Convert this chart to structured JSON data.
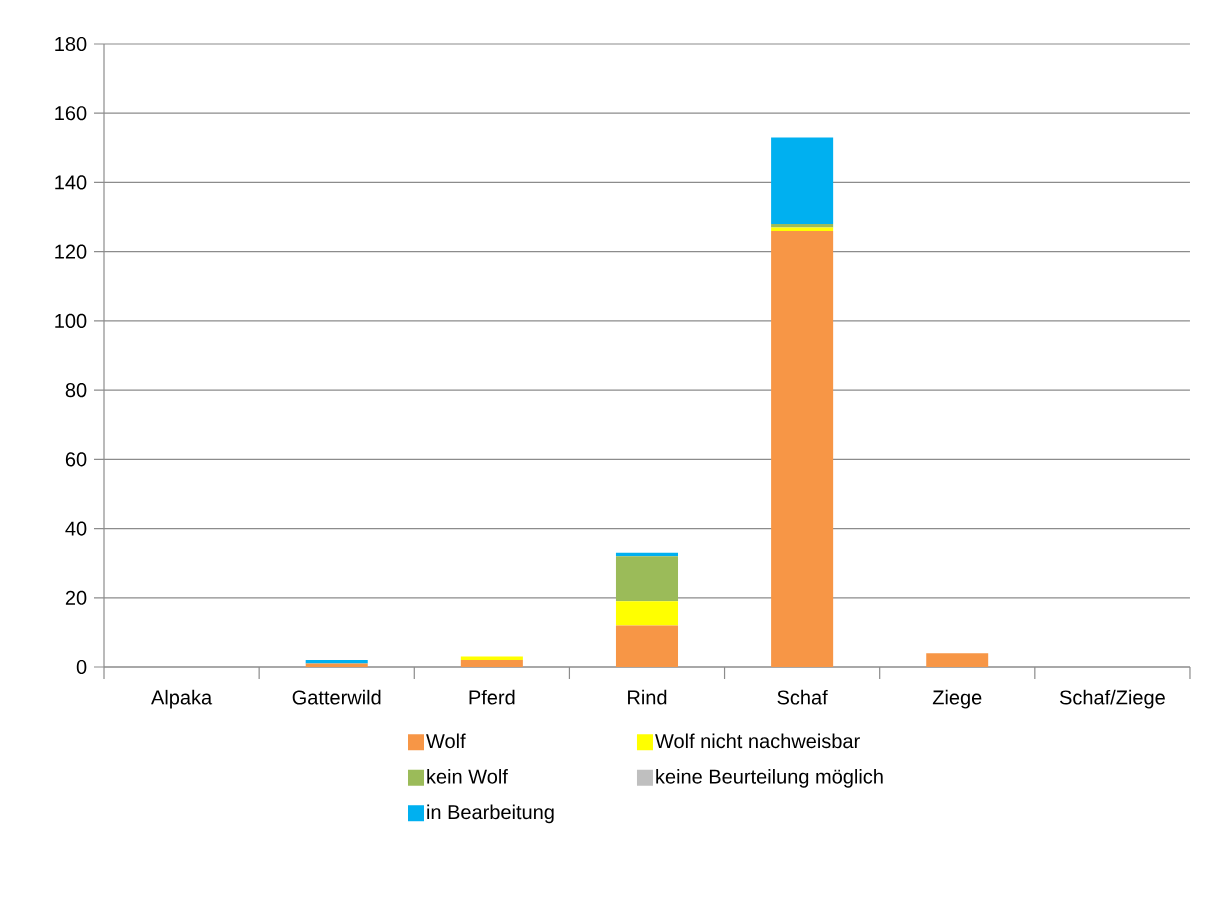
{
  "chart_data": {
    "type": "bar",
    "stacked": true,
    "categories": [
      "Alpaka",
      "Gatterwild",
      "Pferd",
      "Rind",
      "Schaf",
      "Ziege",
      "Schaf/Ziege"
    ],
    "series": [
      {
        "name": "Wolf",
        "color": "#f79646",
        "values": [
          0,
          1,
          2,
          12,
          126,
          4,
          0
        ]
      },
      {
        "name": "Wolf nicht nachweisbar",
        "color": "#ffff00",
        "values": [
          0,
          0,
          1,
          7,
          1,
          0,
          0
        ]
      },
      {
        "name": "kein Wolf",
        "color": "#9bbb59",
        "values": [
          0,
          0,
          0,
          13,
          1,
          0,
          0
        ]
      },
      {
        "name": "keine Beurteilung möglich",
        "color": "#bfbfbf",
        "values": [
          0,
          0,
          0,
          0,
          0,
          0,
          0
        ]
      },
      {
        "name": "in Bearbeitung",
        "color": "#00b0f0",
        "values": [
          0,
          1,
          0,
          1,
          25,
          0,
          0
        ]
      }
    ],
    "ylim": [
      0,
      180
    ],
    "yticks": [
      0,
      20,
      40,
      60,
      80,
      100,
      120,
      140,
      160,
      180
    ],
    "grid": "y",
    "legend": "bottom"
  }
}
